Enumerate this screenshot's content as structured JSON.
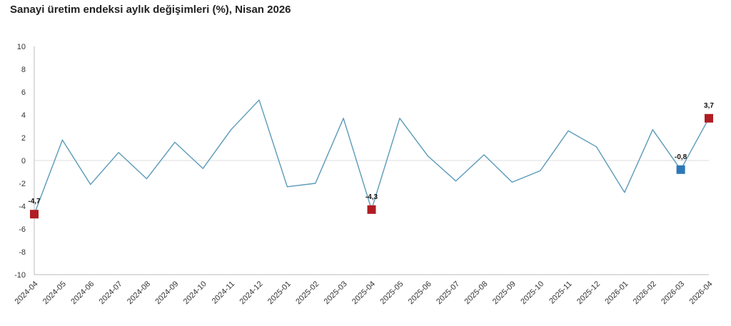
{
  "chart_data": {
    "type": "line",
    "title": "Sanayi üretim endeksi aylık değişimleri (%), Nisan 2026",
    "xlabel": "",
    "ylabel": "",
    "ylim": [
      -10,
      10
    ],
    "yticks": [
      "10",
      "8",
      "6",
      "4",
      "2",
      "0",
      "-2",
      "-4",
      "-6",
      "-8",
      "-10"
    ],
    "grid": false,
    "legend": "none",
    "categories": [
      "2024-04",
      "2024-05",
      "2024-06",
      "2024-07",
      "2024-08",
      "2024-09",
      "2024-10",
      "2024-11",
      "2024-12",
      "2025-01",
      "2025-02",
      "2025-03",
      "2025-04",
      "2025-05",
      "2025-06",
      "2025-07",
      "2025-08",
      "2025-09",
      "2025-10",
      "2025-11",
      "2025-12",
      "2026-01",
      "2026-02",
      "2026-03",
      "2026-04"
    ],
    "series": [
      {
        "values": [
          -4.7,
          1.8,
          -2.1,
          0.7,
          -1.6,
          1.6,
          -0.7,
          2.7,
          5.3,
          -2.3,
          -2.0,
          3.7,
          -4.3,
          3.7,
          0.4,
          -1.8,
          0.5,
          -1.9,
          -0.9,
          2.6,
          1.2,
          -2.8,
          2.7,
          -0.8,
          3.7
        ],
        "color": "#5b9ab8"
      }
    ],
    "highlights": [
      {
        "index": 0,
        "label": "-4,7",
        "color": "#b01c22"
      },
      {
        "index": 12,
        "label": "-4,3",
        "color": "#b01c22"
      },
      {
        "index": 23,
        "label": "-0,8",
        "color": "#2e78b7"
      },
      {
        "index": 24,
        "label": "3,7",
        "color": "#b01c22"
      }
    ],
    "zero_line_color": "#dddddd"
  }
}
